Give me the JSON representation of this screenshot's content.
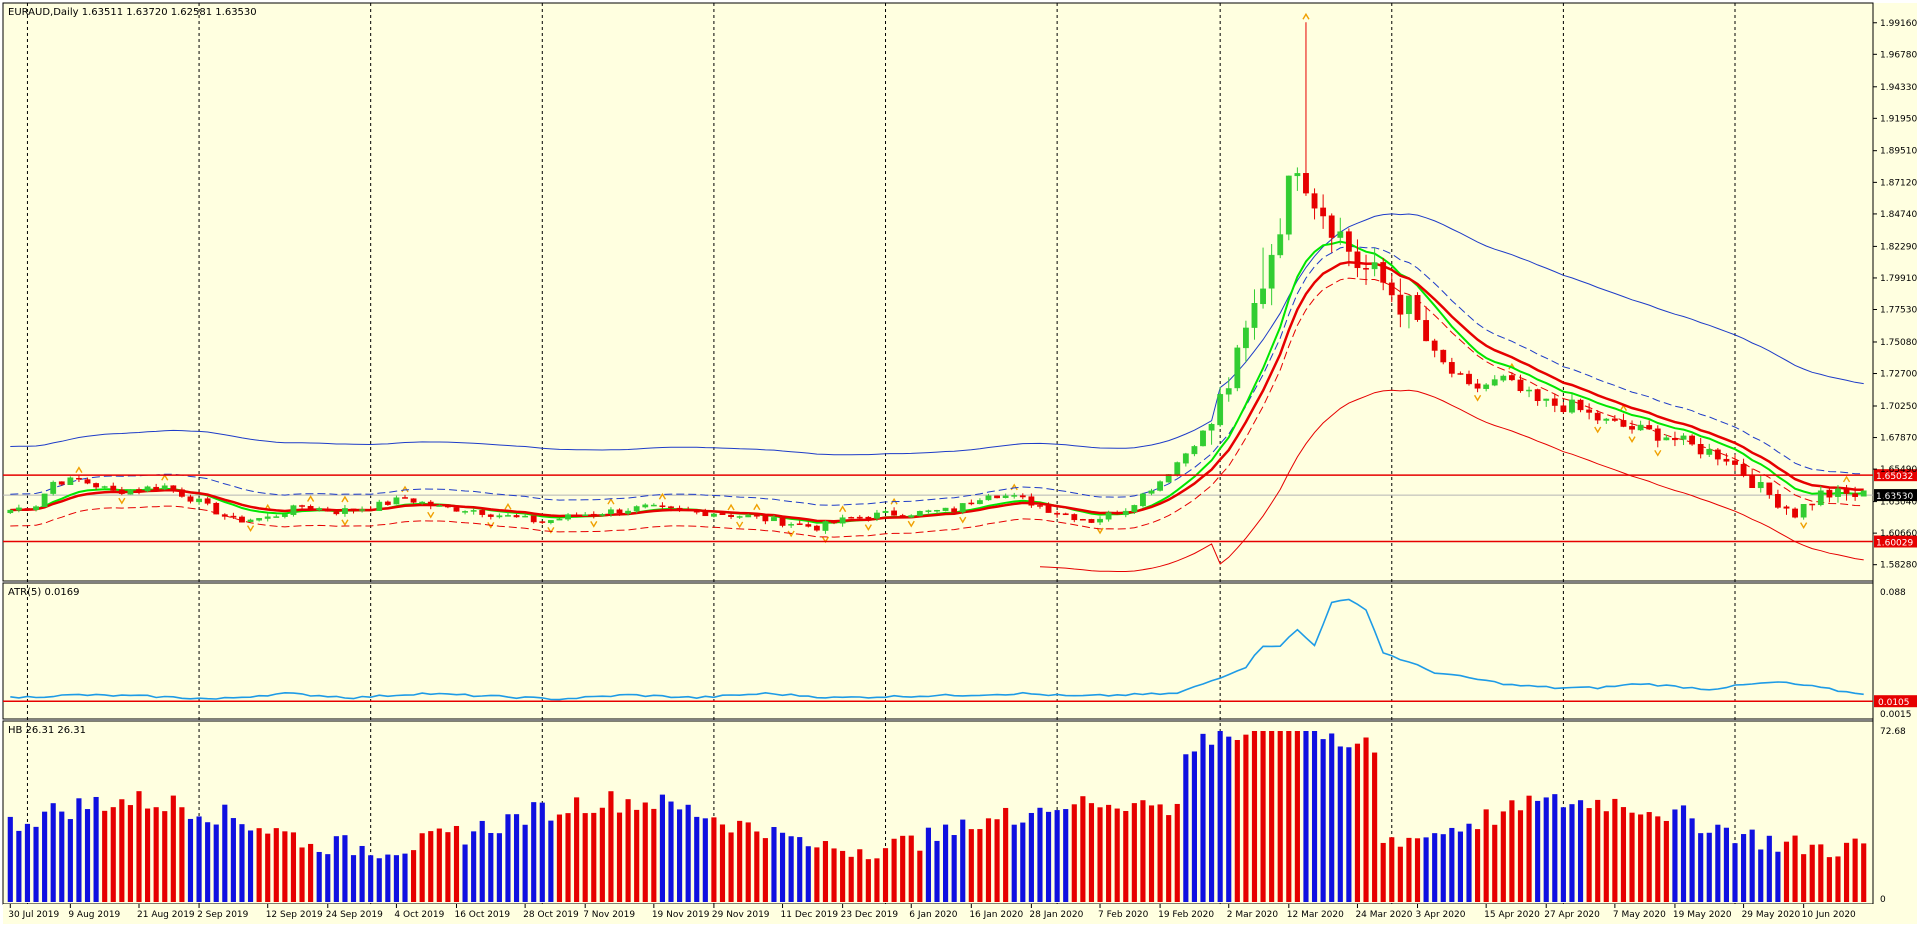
{
  "chart_data": {
    "type": "candlestick",
    "symbol_header": "EURAUD,Daily  1.63511 1.63720 1.62581 1.63530",
    "price_axis": {
      "min": 1.572,
      "max": 2.005,
      "tick_labels": [
        "1.99160",
        "1.96780",
        "1.94330",
        "1.91950",
        "1.89510",
        "1.87120",
        "1.84740",
        "1.82290",
        "1.79910",
        "1.77530",
        "1.75080",
        "1.72700",
        "1.70250",
        "1.67870",
        "1.65490",
        "1.63040",
        "1.60660",
        "1.58280"
      ]
    },
    "horizontal_lines": [
      {
        "price": 1.65032,
        "label": "1.65032",
        "color": "#e60000"
      },
      {
        "price": 1.60029,
        "label": "1.60029",
        "color": "#e60000"
      }
    ],
    "last_price": {
      "price": 1.6353,
      "label": "1.63530"
    },
    "date_labels": [
      "30 Jul 2019",
      "9 Aug 2019",
      "21 Aug 2019",
      "2 Sep 2019",
      "12 Sep 2019",
      "24 Sep 2019",
      "4 Oct 2019",
      "16 Oct 2019",
      "28 Oct 2019",
      "7 Nov 2019",
      "19 Nov 2019",
      "29 Nov 2019",
      "11 Dec 2019",
      "23 Dec 2019",
      "6 Jan 2020",
      "16 Jan 2020",
      "28 Jan 2020",
      "7 Feb 2020",
      "19 Feb 2020",
      "2 Mar 2020",
      "12 Mar 2020",
      "24 Mar 2020",
      "3 Apr 2020",
      "15 Apr 2020",
      "27 Apr 2020",
      "7 May 2020",
      "19 May 2020",
      "29 May 2020",
      "10 Jun 2020"
    ],
    "close_anchors": [
      [
        0,
        1.624
      ],
      [
        3,
        1.628
      ],
      [
        5,
        1.645
      ],
      [
        8,
        1.647
      ],
      [
        12,
        1.638
      ],
      [
        18,
        1.642
      ],
      [
        22,
        1.63
      ],
      [
        26,
        1.616
      ],
      [
        30,
        1.618
      ],
      [
        34,
        1.627
      ],
      [
        38,
        1.623
      ],
      [
        42,
        1.626
      ],
      [
        46,
        1.633
      ],
      [
        50,
        1.626
      ],
      [
        54,
        1.624
      ],
      [
        58,
        1.619
      ],
      [
        62,
        1.615
      ],
      [
        66,
        1.62
      ],
      [
        70,
        1.623
      ],
      [
        74,
        1.626
      ],
      [
        78,
        1.623
      ],
      [
        82,
        1.622
      ],
      [
        86,
        1.619
      ],
      [
        90,
        1.615
      ],
      [
        94,
        1.611
      ],
      [
        98,
        1.618
      ],
      [
        102,
        1.621
      ],
      [
        106,
        1.622
      ],
      [
        110,
        1.624
      ],
      [
        114,
        1.637
      ],
      [
        118,
        1.632
      ],
      [
        122,
        1.622
      ],
      [
        126,
        1.616
      ],
      [
        130,
        1.625
      ],
      [
        134,
        1.646
      ],
      [
        137,
        1.667
      ],
      [
        140,
        1.69
      ],
      [
        143,
        1.735
      ],
      [
        146,
        1.797
      ],
      [
        150,
        1.889
      ],
      [
        152,
        1.86
      ],
      [
        154,
        1.842
      ],
      [
        157,
        1.81
      ],
      [
        160,
        1.795
      ],
      [
        163,
        1.775
      ],
      [
        166,
        1.74
      ],
      [
        170,
        1.715
      ],
      [
        174,
        1.722
      ],
      [
        178,
        1.705
      ],
      [
        182,
        1.702
      ],
      [
        186,
        1.69
      ],
      [
        190,
        1.684
      ],
      [
        193,
        1.68
      ],
      [
        196,
        1.672
      ],
      [
        200,
        1.664
      ],
      [
        204,
        1.64
      ],
      [
        208,
        1.622
      ],
      [
        211,
        1.636
      ],
      [
        216,
        1.635
      ]
    ],
    "candles": {
      "count": 217,
      "up_color": "#32cd32",
      "down_color": "#e60000"
    },
    "overlays": {
      "ma_red_thick": "#e60000",
      "ma_green": "#00e600",
      "upper_band_blue": "#1e3cc8",
      "lower_band_red": "#e60000"
    },
    "atr": {
      "label": "ATR(5) 0.0169",
      "axis_labels": [
        "0.088",
        "0.0015",
        "0"
      ],
      "min": 0.0,
      "max": 0.088,
      "level": {
        "value": 0.0105,
        "label": "0.0105"
      },
      "color": "#1e9be6",
      "anchors": [
        [
          0,
          0.013
        ],
        [
          8,
          0.015
        ],
        [
          16,
          0.014
        ],
        [
          24,
          0.012
        ],
        [
          32,
          0.016
        ],
        [
          40,
          0.013
        ],
        [
          48,
          0.016
        ],
        [
          56,
          0.014
        ],
        [
          64,
          0.012
        ],
        [
          72,
          0.015
        ],
        [
          80,
          0.013
        ],
        [
          88,
          0.016
        ],
        [
          96,
          0.013
        ],
        [
          104,
          0.014
        ],
        [
          112,
          0.015
        ],
        [
          118,
          0.016
        ],
        [
          124,
          0.014
        ],
        [
          130,
          0.015
        ],
        [
          136,
          0.016
        ],
        [
          140,
          0.025
        ],
        [
          144,
          0.035
        ],
        [
          146,
          0.05
        ],
        [
          148,
          0.05
        ],
        [
          150,
          0.061
        ],
        [
          152,
          0.05
        ],
        [
          154,
          0.081
        ],
        [
          156,
          0.082
        ],
        [
          158,
          0.076
        ],
        [
          160,
          0.045
        ],
        [
          163,
          0.038
        ],
        [
          166,
          0.031
        ],
        [
          170,
          0.027
        ],
        [
          175,
          0.022
        ],
        [
          180,
          0.02
        ],
        [
          185,
          0.02
        ],
        [
          190,
          0.023
        ],
        [
          194,
          0.021
        ],
        [
          198,
          0.019
        ],
        [
          202,
          0.022
        ],
        [
          206,
          0.024
        ],
        [
          210,
          0.021
        ],
        [
          214,
          0.017
        ],
        [
          216,
          0.016
        ]
      ]
    },
    "hb": {
      "label": "HB 26.31 26.31",
      "axis_labels": [
        "72.68",
        "0"
      ],
      "max": 72.68,
      "colors": {
        "red": "#e60000",
        "blue": "#1010e0"
      }
    }
  }
}
